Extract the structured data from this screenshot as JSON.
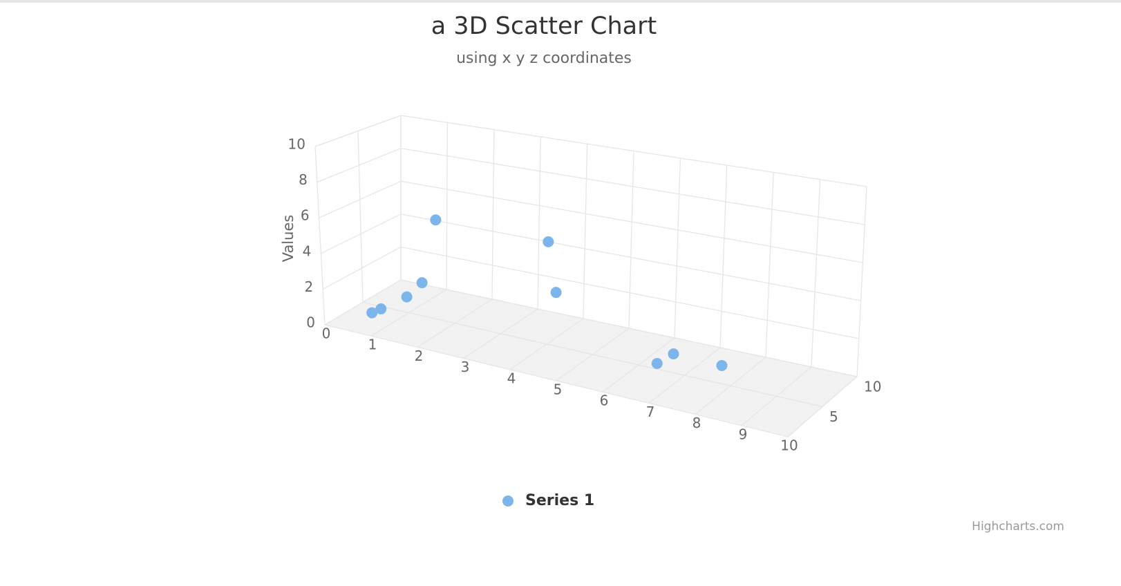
{
  "chart_data": {
    "type": "scatter3d",
    "title": "a 3D Scatter Chart",
    "subtitle": "using x y z coordinates",
    "y_axis_title": "Values",
    "series": [
      {
        "name": "Series 1",
        "color": "#7cb5ec",
        "x": [
          0.7,
          0.9,
          1.3,
          1.3,
          1.1,
          3.7,
          4.2,
          6.4,
          6.75,
          7.8
        ],
        "y": [
          0.6,
          0.94,
          1.6,
          1.9,
          4.7,
          5.0,
          2.95,
          0.3,
          1.0,
          0.95
        ],
        "z": [
          2,
          2,
          3,
          5,
          8,
          7,
          5,
          5,
          5,
          5
        ]
      }
    ],
    "xlim": [
      0,
      10
    ],
    "xticks": [
      0,
      1,
      2,
      3,
      4,
      5,
      6,
      7,
      8,
      9,
      10
    ],
    "ylim": [
      0,
      10
    ],
    "yticks": [
      0,
      2,
      4,
      6,
      8,
      10
    ],
    "zlim": [
      0,
      10
    ],
    "zticks": [
      5,
      10
    ],
    "grid": true,
    "credits": "Highcharts.com"
  }
}
